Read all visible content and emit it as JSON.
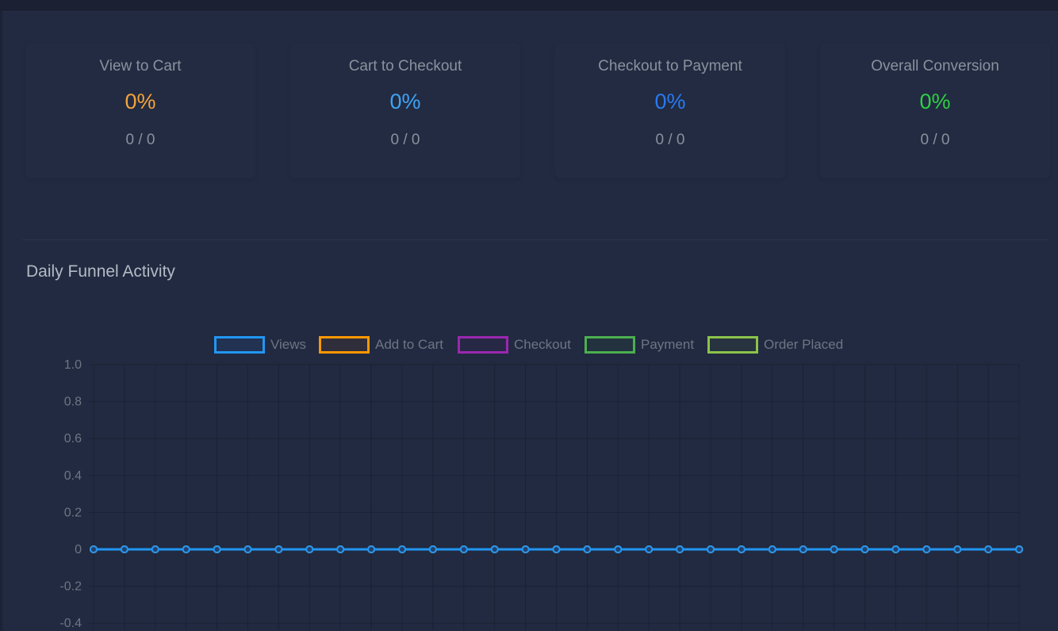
{
  "cards": [
    {
      "label": "View to Cart",
      "value": "0%",
      "count": "0 / 0",
      "color": "#f5a33b"
    },
    {
      "label": "Cart to Checkout",
      "value": "0%",
      "count": "0 / 0",
      "color": "#3fa3f5"
    },
    {
      "label": "Checkout to Payment",
      "value": "0%",
      "count": "0 / 0",
      "color": "#2979f2"
    },
    {
      "label": "Overall Conversion",
      "value": "0%",
      "count": "0 / 0",
      "color": "#2fcf45"
    }
  ],
  "section_title": "Daily Funnel Activity",
  "chart_data": {
    "type": "line",
    "title": "",
    "xlabel": "",
    "ylabel": "",
    "ylim": [
      -0.4,
      1.0
    ],
    "yticks": [
      "1.0",
      "0.8",
      "0.6",
      "0.4",
      "0.2",
      "0",
      "-0.2",
      "-0.4"
    ],
    "grid": true,
    "legend_position": "top",
    "point_count": 31,
    "series": [
      {
        "name": "Views",
        "color": "#2196f3",
        "values": [
          0,
          0,
          0,
          0,
          0,
          0,
          0,
          0,
          0,
          0,
          0,
          0,
          0,
          0,
          0,
          0,
          0,
          0,
          0,
          0,
          0,
          0,
          0,
          0,
          0,
          0,
          0,
          0,
          0,
          0,
          0
        ]
      },
      {
        "name": "Add to Cart",
        "color": "#ff9800",
        "values": [
          0,
          0,
          0,
          0,
          0,
          0,
          0,
          0,
          0,
          0,
          0,
          0,
          0,
          0,
          0,
          0,
          0,
          0,
          0,
          0,
          0,
          0,
          0,
          0,
          0,
          0,
          0,
          0,
          0,
          0,
          0
        ]
      },
      {
        "name": "Checkout",
        "color": "#9c27b0",
        "values": [
          0,
          0,
          0,
          0,
          0,
          0,
          0,
          0,
          0,
          0,
          0,
          0,
          0,
          0,
          0,
          0,
          0,
          0,
          0,
          0,
          0,
          0,
          0,
          0,
          0,
          0,
          0,
          0,
          0,
          0,
          0
        ]
      },
      {
        "name": "Payment",
        "color": "#4caf50",
        "values": [
          0,
          0,
          0,
          0,
          0,
          0,
          0,
          0,
          0,
          0,
          0,
          0,
          0,
          0,
          0,
          0,
          0,
          0,
          0,
          0,
          0,
          0,
          0,
          0,
          0,
          0,
          0,
          0,
          0,
          0,
          0
        ]
      },
      {
        "name": "Order Placed",
        "color": "#8bc34a",
        "values": [
          0,
          0,
          0,
          0,
          0,
          0,
          0,
          0,
          0,
          0,
          0,
          0,
          0,
          0,
          0,
          0,
          0,
          0,
          0,
          0,
          0,
          0,
          0,
          0,
          0,
          0,
          0,
          0,
          0,
          0,
          0
        ]
      }
    ]
  }
}
